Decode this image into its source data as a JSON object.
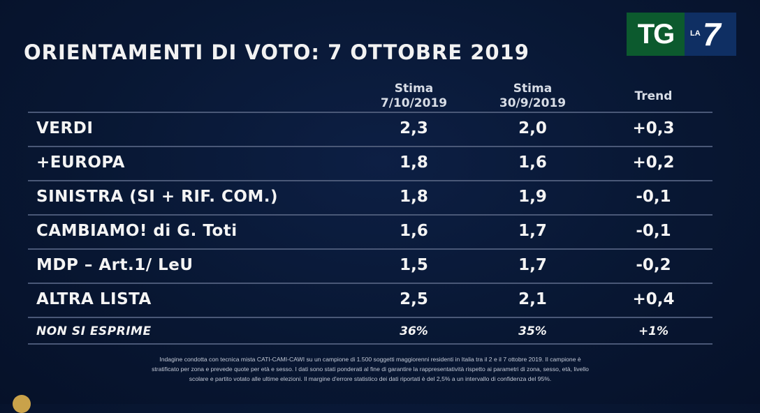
{
  "title": "ORIENTAMENTI DI VOTO: 7 OTTOBRE 2019",
  "logo": {
    "tg": "TG",
    "la": "LA",
    "seven": "7"
  },
  "chart_data": {
    "type": "table",
    "columns": [
      {
        "line1": "Stima",
        "line2": "7/10/2019"
      },
      {
        "line1": "Stima",
        "line2": "30/9/2019"
      },
      {
        "line1": "Trend",
        "line2": ""
      }
    ],
    "rows": [
      {
        "label": "VERDI",
        "values": [
          "2,3",
          "2,0",
          "+0,3"
        ]
      },
      {
        "label": "+EUROPA",
        "values": [
          "1,8",
          "1,6",
          "+0,2"
        ]
      },
      {
        "label": "SINISTRA (SI + RIF. COM.)",
        "values": [
          "1,8",
          "1,9",
          "-0,1"
        ]
      },
      {
        "label": "CAMBIAMO! di G. Toti",
        "values": [
          "1,6",
          "1,7",
          "-0,1"
        ]
      },
      {
        "label": "MDP – Art.1/ LeU",
        "values": [
          "1,5",
          "1,7",
          "-0,2"
        ]
      },
      {
        "label": "ALTRA LISTA",
        "values": [
          "2,5",
          "2,1",
          "+0,4"
        ]
      },
      {
        "label": "NON SI ESPRIME",
        "values": [
          "36%",
          "35%",
          "+1%"
        ]
      }
    ]
  },
  "footnote": {
    "line1": "Indagine condotta con tecnica mista CATI-CAMI-CAWI su un campione di 1.500 soggetti maggiorenni residenti in Italia tra il 2 e il 7 ottobre 2019. Il campione è",
    "line2": "stratificato per zona e prevede quote per età e sesso. I dati sono stati ponderati al fine di garantire la rappresentatività rispetto ai parametri di zona, sesso, età, livello",
    "line3": "scolare e partito votato alle ultime elezioni. Il margine d'errore statistico dei dati riportati è del 2,5% a un intervallo di confidenza del 95%."
  }
}
